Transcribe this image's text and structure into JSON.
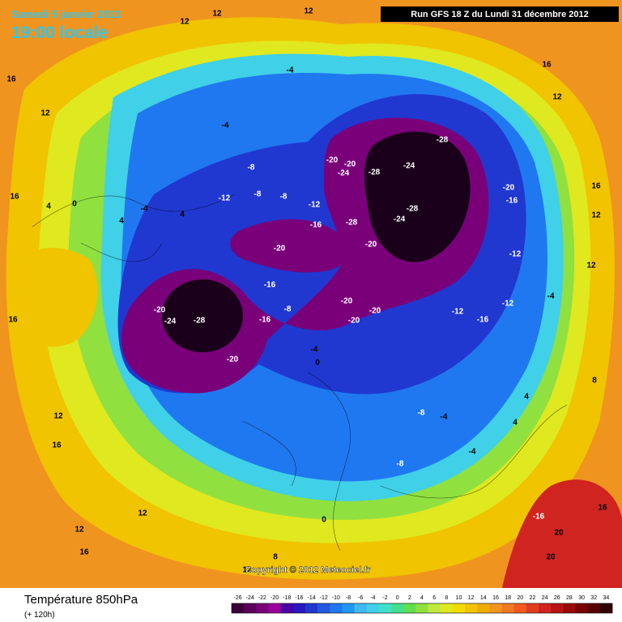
{
  "header": {
    "date": "Samedi 5 janvier 2013",
    "time": "19:00 locale",
    "run": "Run GFS 18 Z du Lundi 31 décembre 2012"
  },
  "footer": {
    "title": "Température 850hPa",
    "subtitle": "(+ 120h)",
    "copyright": "Copyright © 2012 Meteociel.fr"
  },
  "legend": {
    "ticks": [
      -26,
      -24,
      -22,
      -20,
      -18,
      -16,
      -14,
      -12,
      -10,
      -8,
      -6,
      -4,
      -2,
      0,
      2,
      4,
      6,
      8,
      10,
      12,
      14,
      16,
      18,
      20,
      22,
      24,
      26,
      28,
      30,
      32,
      34
    ],
    "colors": [
      "#3a003a",
      "#5a005a",
      "#7a007a",
      "#9a009a",
      "#4a00a8",
      "#2818c0",
      "#2038d0",
      "#2058e0",
      "#2078f0",
      "#2098f0",
      "#40b8f0",
      "#40d0e8",
      "#40e0c8",
      "#40e090",
      "#60e050",
      "#90e040",
      "#c0e840",
      "#e0e820",
      "#f0dc00",
      "#f0c400",
      "#f0ac00",
      "#f09420",
      "#f07820",
      "#f05a20",
      "#e03c20",
      "#d02420",
      "#b81414",
      "#980808",
      "#780000",
      "#580000",
      "#300000"
    ]
  },
  "map": {
    "labels": [
      12,
      12,
      12,
      16,
      12,
      16,
      4,
      0,
      4,
      4,
      -4,
      -4,
      -4,
      -8,
      -8,
      -8,
      -12,
      -12,
      -16,
      -20,
      -20,
      -24,
      -28,
      -20,
      -16,
      -8,
      -16,
      -28,
      -24,
      -28,
      -20,
      -20,
      -24,
      -28,
      -24,
      -28,
      -20,
      -20,
      -20,
      -20,
      -20,
      -16,
      -12,
      -12,
      -12,
      -16,
      -4,
      12,
      12,
      16,
      12,
      16,
      12,
      12,
      16,
      0,
      -4,
      -8,
      -4,
      -8,
      -4,
      4,
      4,
      -16,
      20,
      20,
      16,
      8,
      16,
      12,
      16,
      0,
      8,
      12
    ]
  }
}
